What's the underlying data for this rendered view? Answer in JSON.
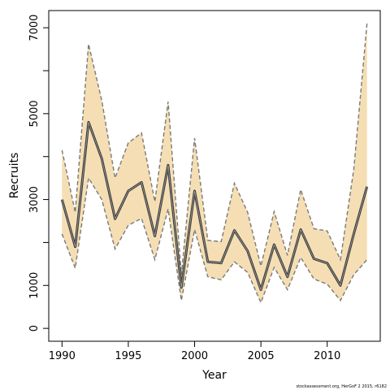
{
  "chart_data": {
    "type": "line",
    "xlabel": "Year",
    "ylabel": "Recruits",
    "xlim": [
      1989,
      2014
    ],
    "ylim": [
      -300,
      7400
    ],
    "x_ticks": [
      1990,
      1995,
      2000,
      2005,
      2010
    ],
    "y_ticks": [
      0,
      1000,
      3000,
      5000,
      7000
    ],
    "y_minor_ticks": [
      2000,
      4000,
      6000
    ],
    "grid": false,
    "colors": {
      "band": "#f5deb3",
      "line": "#3a3a3a",
      "bounds": "#7a7a7a"
    },
    "x": [
      1990,
      1991,
      1992,
      1993,
      1994,
      1995,
      1996,
      1997,
      1998,
      1999,
      2000,
      2001,
      2002,
      2003,
      2004,
      2005,
      2006,
      2007,
      2008,
      2009,
      2010,
      2011,
      2012,
      2013
    ],
    "series": [
      {
        "role": "estimate",
        "values": [
          3000,
          1900,
          4800,
          3950,
          2550,
          3200,
          3400,
          2150,
          3800,
          950,
          3200,
          1550,
          1520,
          2280,
          1800,
          900,
          1950,
          1200,
          2300,
          1620,
          1520,
          1000,
          2200,
          3300
        ]
      },
      {
        "role": "upper",
        "values": [
          4150,
          2700,
          6620,
          5300,
          3500,
          4320,
          4550,
          2950,
          5280,
          1250,
          4430,
          2050,
          2020,
          3380,
          2700,
          1450,
          2720,
          1700,
          3230,
          2320,
          2270,
          1600,
          3700,
          7100
        ]
      },
      {
        "role": "lower",
        "values": [
          2200,
          1400,
          3500,
          3000,
          1850,
          2400,
          2560,
          1600,
          2780,
          650,
          2300,
          1200,
          1130,
          1550,
          1300,
          600,
          1420,
          900,
          1650,
          1150,
          1030,
          650,
          1250,
          1600
        ]
      }
    ],
    "credit": "stockassessment.org, HerGoF 2 2015, r6182"
  }
}
